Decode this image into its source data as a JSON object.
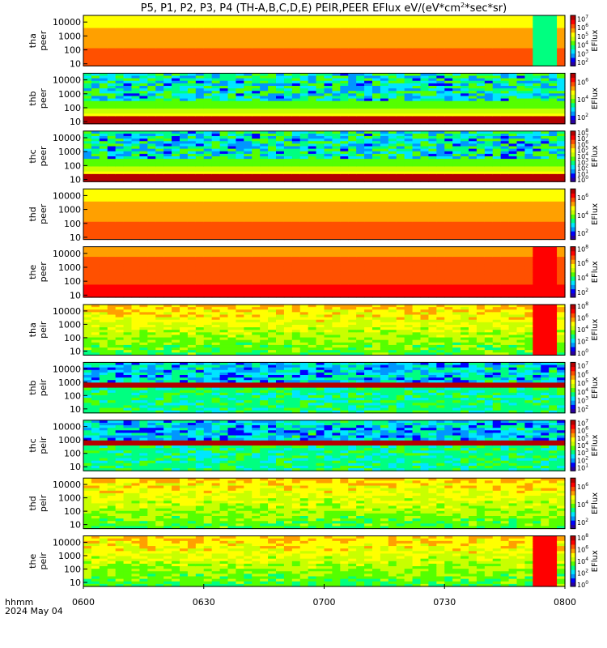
{
  "chart_data": {
    "type": "heatmap",
    "title": "P5, P1, P2, P3, P4 (TH-A,B,C,D,E) PEIR,PEER EFlux eV/(eV*cm",
    "title_sup": "2",
    "title_tail": "*sec*sr)",
    "x_axis": {
      "label_line1": "hhmm",
      "label_line2": "2024 May 04",
      "tick_labels": [
        "0600",
        "0630",
        "0700",
        "0730",
        "0800"
      ],
      "range_minutes": [
        0,
        120
      ],
      "tick_minutes": [
        0,
        30,
        60,
        90,
        120
      ]
    },
    "colorbar_label": "EFlux",
    "panels": [
      {
        "probe": "tha",
        "species": "peer",
        "ytick_labels": [
          "10000",
          "1000",
          "100",
          "10"
        ],
        "ylim": [
          7,
          30000
        ],
        "scale": "log",
        "cbar_ticks": [
          {
            "m": "10",
            "e": "7"
          },
          {
            "m": "10",
            "e": "6"
          },
          {
            "m": "10",
            "e": "5"
          },
          {
            "m": "10",
            "e": "4"
          },
          {
            "m": "10",
            "e": "3"
          },
          {
            "m": "10",
            "e": "2"
          }
        ],
        "cbar_range_exp": [
          1.6,
          7.4
        ]
      },
      {
        "probe": "thb",
        "species": "peer",
        "ytick_labels": [
          "10000",
          "1000",
          "100",
          "10"
        ],
        "ylim": [
          7,
          30000
        ],
        "scale": "log",
        "cbar_ticks": [
          {
            "m": "10",
            "e": "6"
          },
          {
            "m": "10",
            "e": "4"
          },
          {
            "m": "10",
            "e": "2"
          }
        ],
        "cbar_range_exp": [
          1.3,
          7.0
        ]
      },
      {
        "probe": "thc",
        "species": "peer",
        "ytick_labels": [
          "10000",
          "1000",
          "100",
          "10"
        ],
        "ylim": [
          7,
          30000
        ],
        "scale": "log",
        "cbar_ticks": [
          {
            "m": "10",
            "e": "8"
          },
          {
            "m": "10",
            "e": "7"
          },
          {
            "m": "10",
            "e": "6"
          },
          {
            "m": "10",
            "e": "5"
          },
          {
            "m": "10",
            "e": "4"
          },
          {
            "m": "10",
            "e": "3"
          },
          {
            "m": "10",
            "e": "2"
          },
          {
            "m": "10",
            "e": "1"
          },
          {
            "m": "10",
            "e": "0"
          }
        ],
        "cbar_range_exp": [
          -0.3,
          8.3
        ]
      },
      {
        "probe": "thd",
        "species": "peer",
        "ytick_labels": [
          "10000",
          "1000",
          "100",
          "10"
        ],
        "ylim": [
          7,
          30000
        ],
        "scale": "log",
        "cbar_ticks": [
          {
            "m": "10",
            "e": "6"
          },
          {
            "m": "10",
            "e": "4"
          },
          {
            "m": "10",
            "e": "2"
          }
        ],
        "cbar_range_exp": [
          1.3,
          7.0
        ]
      },
      {
        "probe": "the",
        "species": "peer",
        "ytick_labels": [
          "10000",
          "1000",
          "100",
          "10"
        ],
        "ylim": [
          7,
          30000
        ],
        "scale": "log",
        "cbar_ticks": [
          {
            "m": "10",
            "e": "8"
          },
          {
            "m": "10",
            "e": "6"
          },
          {
            "m": "10",
            "e": "4"
          },
          {
            "m": "10",
            "e": "2"
          }
        ],
        "cbar_range_exp": [
          1.3,
          8.3
        ]
      },
      {
        "probe": "tha",
        "species": "peir",
        "ytick_labels": [
          "10000",
          "1000",
          "100",
          "10"
        ],
        "ylim": [
          5,
          30000
        ],
        "scale": "log",
        "cbar_ticks": [
          {
            "m": "10",
            "e": "8"
          },
          {
            "m": "10",
            "e": "6"
          },
          {
            "m": "10",
            "e": "4"
          },
          {
            "m": "10",
            "e": "2"
          },
          {
            "m": "10",
            "e": "0"
          }
        ],
        "cbar_range_exp": [
          -0.3,
          8.3
        ]
      },
      {
        "probe": "thb",
        "species": "peir",
        "ytick_labels": [
          "10000",
          "1000",
          "100",
          "10"
        ],
        "ylim": [
          5,
          30000
        ],
        "scale": "log",
        "cbar_ticks": [
          {
            "m": "10",
            "e": "7"
          },
          {
            "m": "10",
            "e": "6"
          },
          {
            "m": "10",
            "e": "5"
          },
          {
            "m": "10",
            "e": "4"
          },
          {
            "m": "10",
            "e": "3"
          },
          {
            "m": "10",
            "e": "2"
          }
        ],
        "cbar_range_exp": [
          1.6,
          7.4
        ]
      },
      {
        "probe": "thc",
        "species": "peir",
        "ytick_labels": [
          "10000",
          "1000",
          "100",
          "10"
        ],
        "ylim": [
          5,
          30000
        ],
        "scale": "log",
        "cbar_ticks": [
          {
            "m": "10",
            "e": "7"
          },
          {
            "m": "10",
            "e": "6"
          },
          {
            "m": "10",
            "e": "5"
          },
          {
            "m": "10",
            "e": "4"
          },
          {
            "m": "10",
            "e": "3"
          },
          {
            "m": "10",
            "e": "2"
          },
          {
            "m": "10",
            "e": "1"
          }
        ],
        "cbar_range_exp": [
          0.6,
          7.4
        ]
      },
      {
        "probe": "thd",
        "species": "peir",
        "ytick_labels": [
          "10000",
          "1000",
          "100",
          "10"
        ],
        "ylim": [
          5,
          30000
        ],
        "scale": "log",
        "cbar_ticks": [
          {
            "m": "10",
            "e": "6"
          },
          {
            "m": "10",
            "e": "4"
          },
          {
            "m": "10",
            "e": "2"
          }
        ],
        "cbar_range_exp": [
          1.3,
          7.0
        ]
      },
      {
        "probe": "the",
        "species": "peir",
        "ytick_labels": [
          "10000",
          "1000",
          "100",
          "10"
        ],
        "ylim": [
          5,
          30000
        ],
        "scale": "log",
        "cbar_ticks": [
          {
            "m": "10",
            "e": "8"
          },
          {
            "m": "10",
            "e": "6"
          },
          {
            "m": "10",
            "e": "4"
          },
          {
            "m": "10",
            "e": "2"
          },
          {
            "m": "10",
            "e": "0"
          }
        ],
        "cbar_range_exp": [
          -0.3,
          8.3
        ]
      }
    ],
    "colormap": [
      "#2a00a0",
      "#0000ff",
      "#0096ff",
      "#00e6ff",
      "#00ff80",
      "#55ff00",
      "#c8ff00",
      "#ffff00",
      "#ffa000",
      "#ff5000",
      "#ff0000",
      "#b40000"
    ]
  }
}
